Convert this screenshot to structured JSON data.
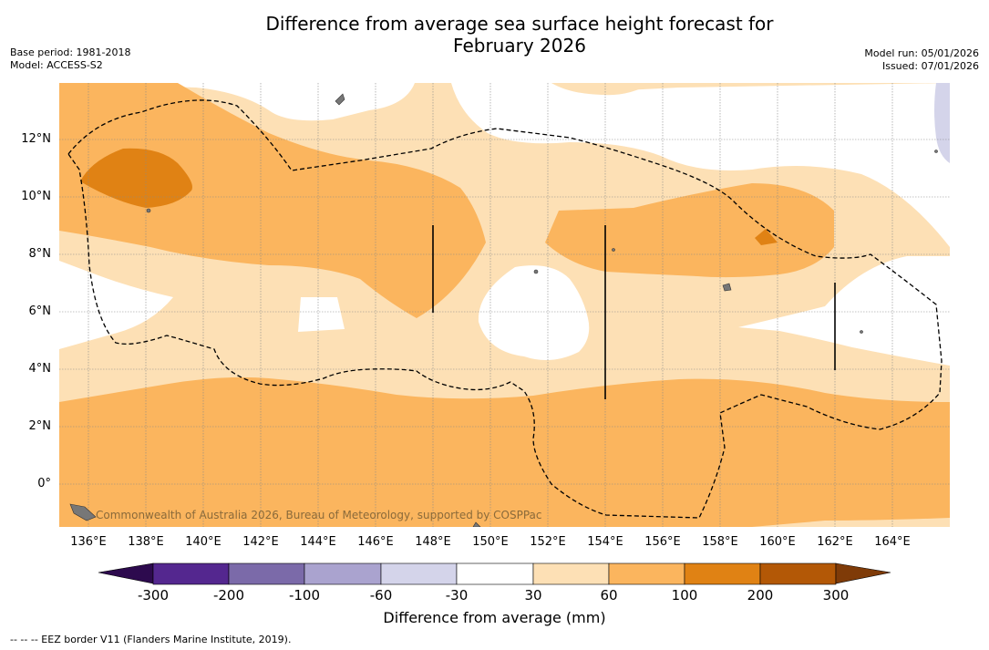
{
  "title_line1": "Difference from average sea surface height forecast for",
  "title_line2": "February 2026",
  "meta_left": {
    "base_period": "Base period: 1981-2018",
    "model": "Model: ACCESS-S2"
  },
  "meta_right": {
    "model_run": "Model run: 05/01/2026",
    "issued": "Issued: 07/01/2026"
  },
  "lat_labels": [
    "12°N",
    "10°N",
    "8°N",
    "6°N",
    "4°N",
    "2°N",
    "0°"
  ],
  "lon_labels": [
    "136°E",
    "138°E",
    "140°E",
    "142°E",
    "144°E",
    "146°E",
    "148°E",
    "150°E",
    "152°E",
    "154°E",
    "156°E",
    "158°E",
    "160°E",
    "162°E",
    "164°E"
  ],
  "credit": "Commonwealth of Australia 2026, Bureau of Meteorology, supported by COSPPac",
  "colorbar": {
    "labels": [
      "-300",
      "-200",
      "-100",
      "-60",
      "-30",
      "30",
      "60",
      "100",
      "200",
      "300"
    ],
    "colors": [
      "#2d0a4e",
      "#54278f",
      "#7b6aa9",
      "#aaa3cf",
      "#d4d4ea",
      "#ffffff",
      "#fde0b5",
      "#fbb55e",
      "#e08214",
      "#b35806",
      "#7f3b08"
    ],
    "title": "Difference from average (mm)"
  },
  "footer": "--  --  -- EEZ border V11 (Flanders Marine Institute, 2019)."
}
